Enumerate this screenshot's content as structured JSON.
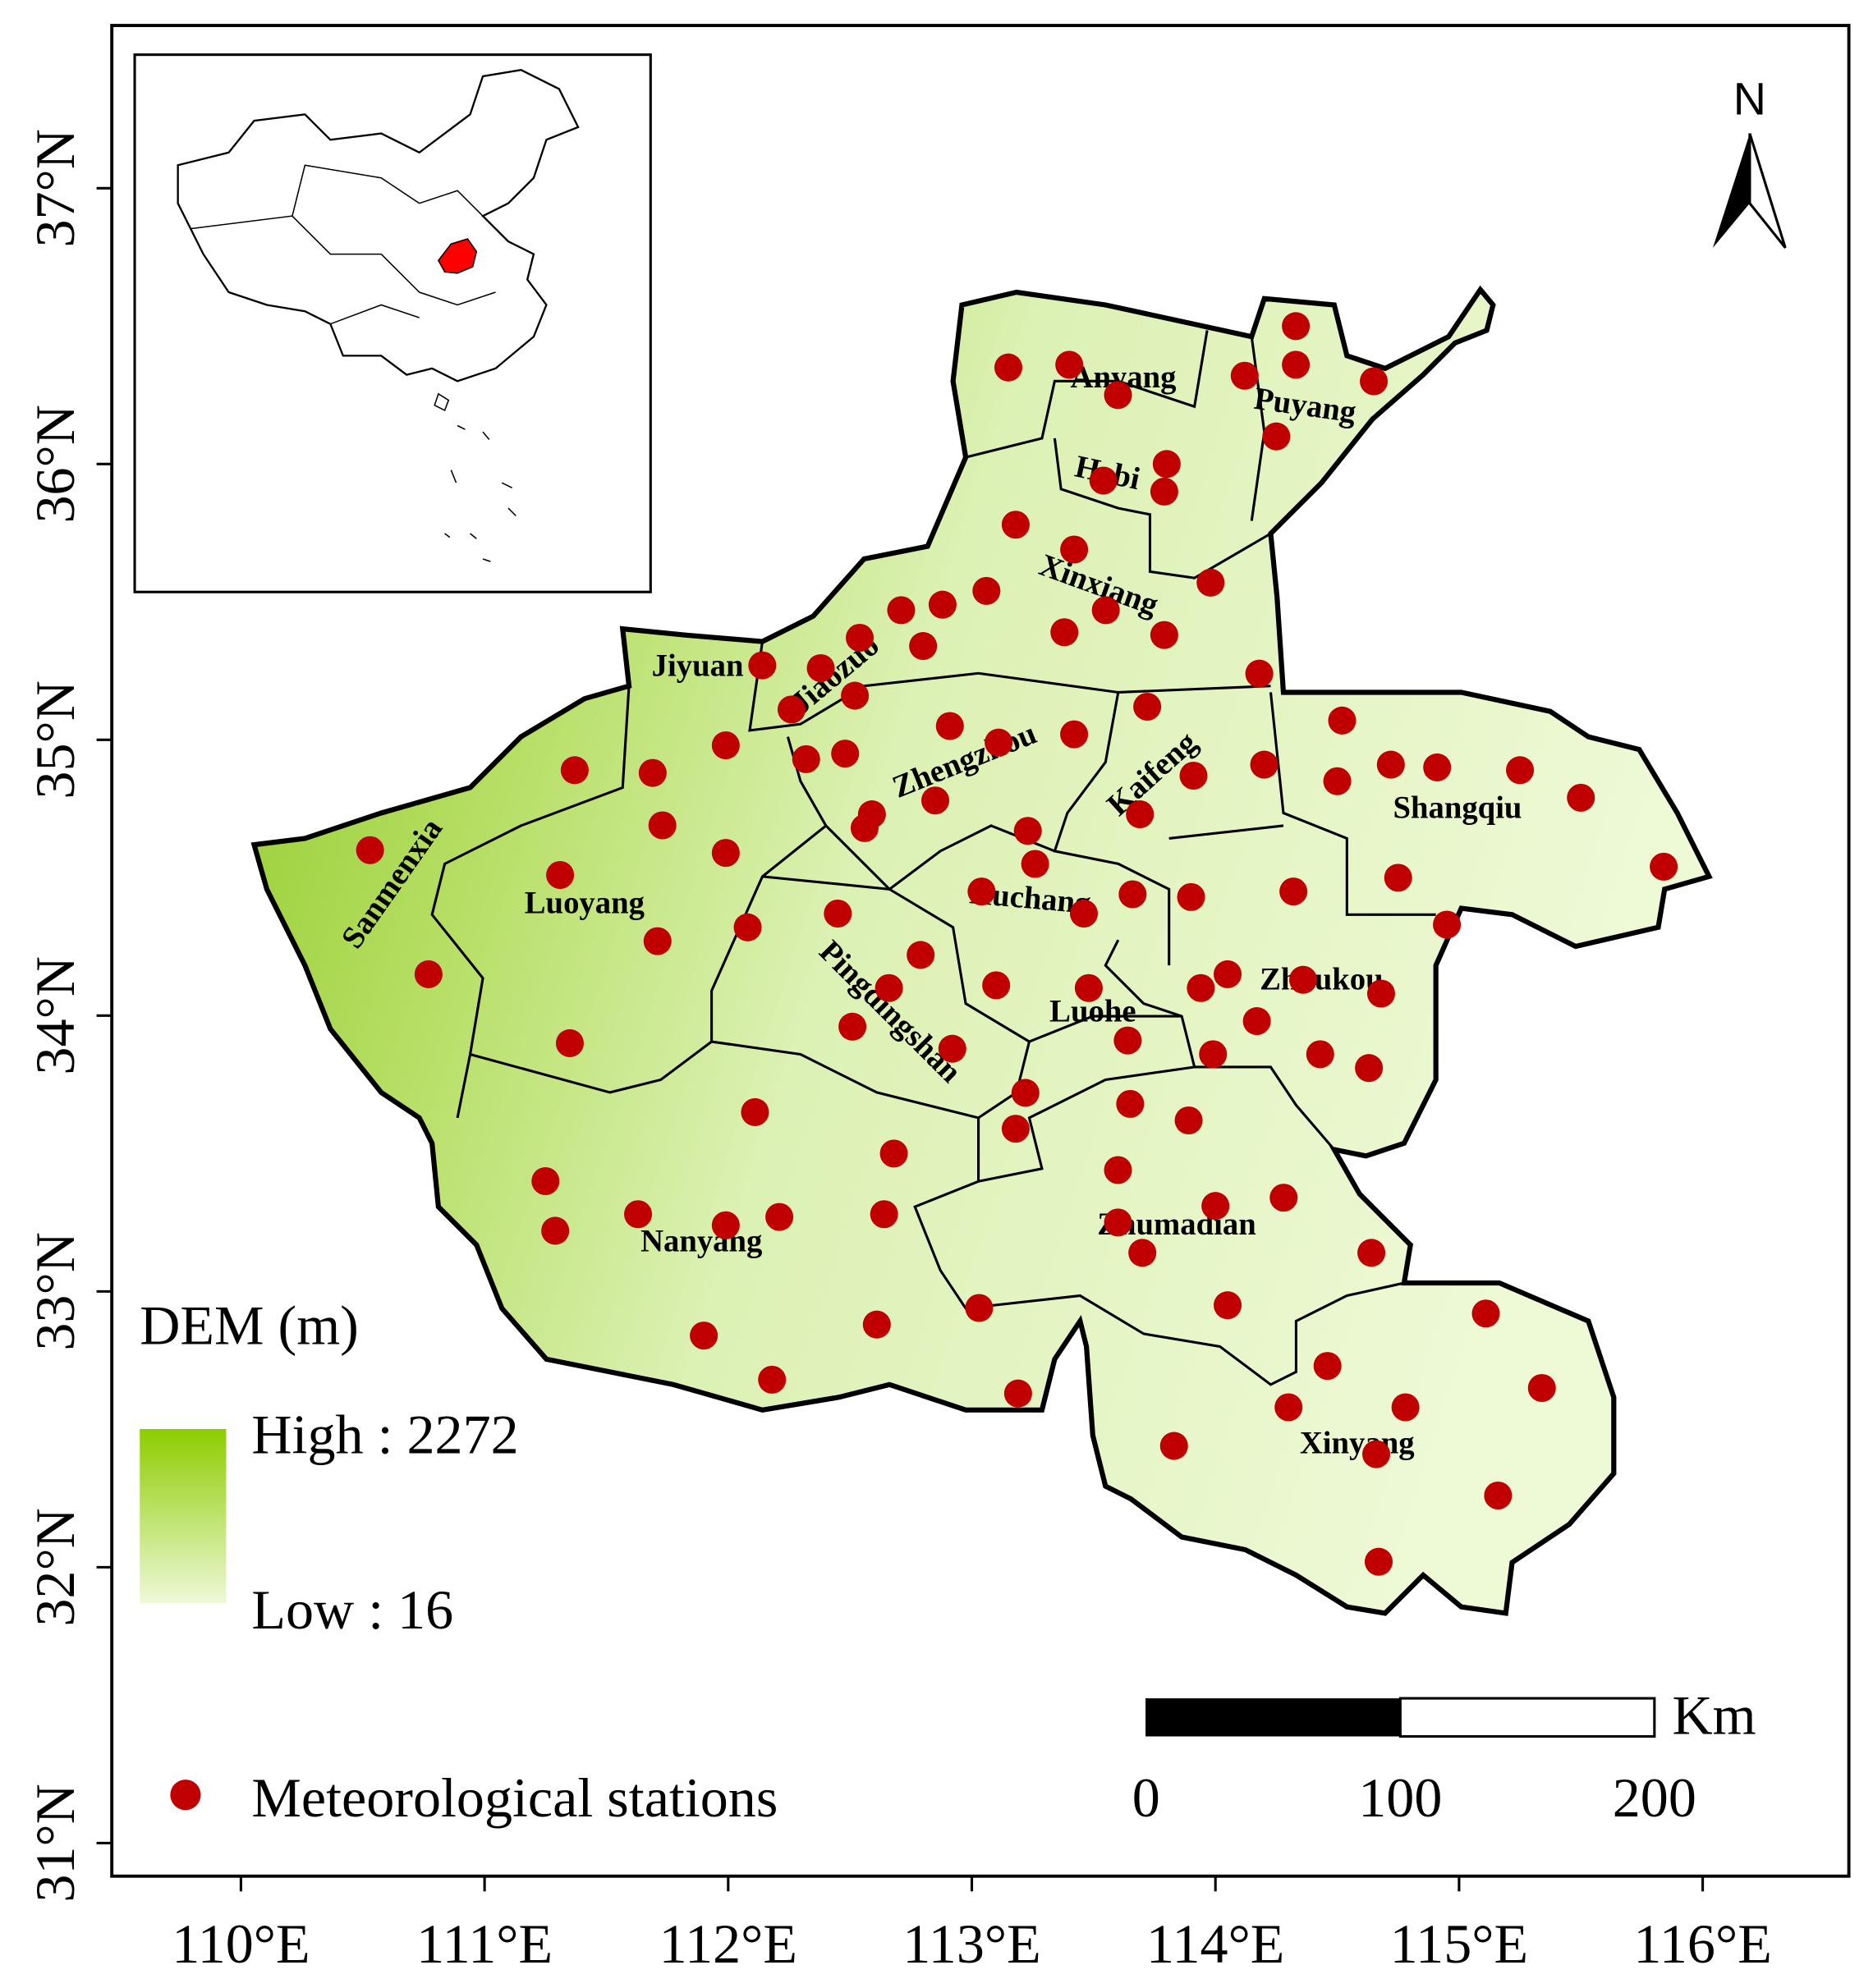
{
  "map": {
    "xlim": [
      109.47,
      116.6
    ],
    "ylim": [
      30.88,
      37.59
    ],
    "xticks": [
      {
        "value": 110,
        "label": "110°E"
      },
      {
        "value": 111,
        "label": "111°E"
      },
      {
        "value": 112,
        "label": "112°E"
      },
      {
        "value": 113,
        "label": "113°E"
      },
      {
        "value": 114,
        "label": "114°E"
      },
      {
        "value": 115,
        "label": "115°E"
      },
      {
        "value": 116,
        "label": "116°E"
      }
    ],
    "yticks": [
      {
        "value": 31,
        "label": "31°N"
      },
      {
        "value": 32,
        "label": "32°N"
      },
      {
        "value": 33,
        "label": "33°N"
      },
      {
        "value": 34,
        "label": "34°N"
      },
      {
        "value": 35,
        "label": "35°N"
      },
      {
        "value": 36,
        "label": "36°N"
      },
      {
        "value": 37,
        "label": "37°N"
      }
    ],
    "regions": [
      "Anyang",
      "Puyang",
      "Hebi",
      "Xinxiang",
      "Jiyuan",
      "Jiaozuo",
      "Zhengzhou",
      "Kaifeng",
      "Shangqiu",
      "Luoyang",
      "Sanmenxia",
      "Xuchang",
      "Pingdingshan",
      "Luohe",
      "Zhoukou",
      "Nanyang",
      "Zhumadian",
      "Xinyang"
    ],
    "legend": {
      "title": "DEM (m)",
      "high": "High : 2272",
      "low": "Low : 16"
    },
    "stations": {
      "label": "Meteorological stations",
      "color": "#c00000",
      "lon": [
        113.15,
        113.4,
        113.6,
        114.12,
        114.33,
        114.33,
        114.65,
        114.25,
        113.8,
        113.79,
        113.54,
        113.18,
        113.42,
        113.06,
        112.88,
        112.71,
        112.54,
        112.8,
        113.38,
        113.55,
        113.79,
        113.98,
        112.14,
        112.38,
        112.52,
        112.26,
        114.18,
        113.72,
        112.91,
        113.11,
        113.42,
        111.99,
        112.32,
        112.48,
        111.37,
        111.69,
        112.59,
        112.56,
        112.85,
        114.2,
        113.91,
        113.69,
        114.52,
        114.72,
        114.91,
        115.25,
        114.5,
        115.5,
        111.73,
        110.53,
        111.99,
        113.23,
        113.26,
        111.31,
        114.75,
        115.84,
        114.95,
        114.32,
        113.9,
        113.66,
        113.04,
        113.46,
        112.45,
        112.08,
        111.71,
        110.77,
        112.79,
        112.66,
        113.1,
        113.48,
        113.94,
        114.05,
        114.36,
        114.68,
        114.17,
        111.35,
        112.51,
        112.92,
        113.64,
        113.99,
        114.43,
        114.63,
        113.22,
        113.18,
        112.11,
        113.65,
        113.89,
        112.68,
        113.6,
        111.25,
        111.29,
        111.63,
        112.21,
        111.99,
        112.64,
        114.28,
        114.0,
        113.6,
        113.7,
        114.64,
        113.03,
        114.05,
        115.11,
        112.61,
        111.9,
        114.46,
        112.18,
        113.19,
        114.3,
        114.78,
        115.34,
        113.83,
        114.66,
        115.16,
        114.67
      ],
      "lat": [
        36.35,
        36.36,
        36.25,
        36.32,
        36.5,
        36.36,
        36.3,
        36.1,
        36.0,
        35.9,
        35.94,
        35.78,
        35.69,
        35.54,
        35.49,
        35.47,
        35.37,
        35.34,
        35.39,
        35.47,
        35.38,
        35.57,
        35.27,
        35.26,
        35.16,
        35.11,
        35.24,
        35.12,
        35.05,
        34.99,
        35.02,
        34.98,
        34.93,
        34.95,
        34.89,
        34.88,
        34.73,
        34.68,
        34.78,
        34.91,
        34.87,
        34.73,
        35.07,
        34.91,
        34.9,
        34.89,
        34.85,
        34.79,
        34.69,
        34.6,
        34.59,
        34.67,
        34.55,
        34.51,
        34.5,
        34.54,
        34.33,
        34.45,
        34.43,
        34.44,
        34.45,
        34.37,
        34.37,
        34.32,
        34.27,
        34.15,
        34.22,
        34.1,
        34.11,
        34.1,
        34.1,
        34.15,
        34.13,
        34.08,
        33.98,
        33.9,
        33.96,
        33.88,
        33.91,
        33.86,
        33.86,
        33.81,
        33.72,
        33.59,
        33.65,
        33.68,
        33.62,
        33.5,
        33.44,
        33.4,
        33.22,
        33.28,
        33.27,
        33.24,
        33.28,
        33.34,
        33.31,
        33.25,
        33.14,
        33.14,
        32.94,
        32.95,
        32.92,
        32.88,
        32.84,
        32.73,
        32.68,
        32.63,
        32.58,
        32.58,
        32.65,
        32.44,
        32.41,
        32.26,
        32.02
      ]
    },
    "scale_bar": {
      "unit": "Km",
      "ticks": [
        0,
        100,
        200
      ]
    },
    "north": "N"
  }
}
